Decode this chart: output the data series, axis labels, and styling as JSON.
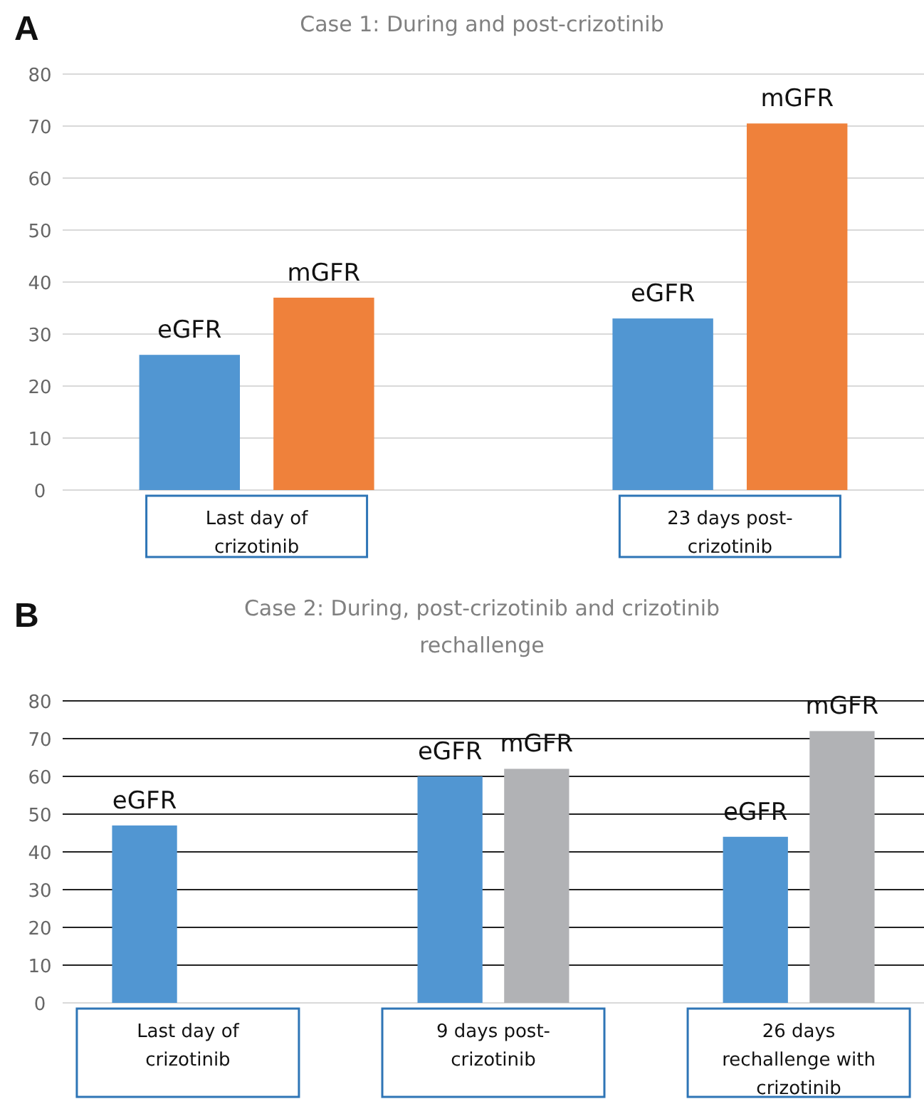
{
  "chart_data": [
    {
      "type": "bar",
      "title": "Case 1: During and post-crizotinib",
      "annotations": [
        "A"
      ],
      "categories": [
        "Last day of crizotinib",
        "23 days post-crizotinib"
      ],
      "series": [
        {
          "name": "eGFR",
          "color": "#5196d2",
          "values": [
            26,
            33
          ]
        },
        {
          "name": "mGFR",
          "color": "#ef813b",
          "values": [
            37,
            70.5
          ]
        }
      ],
      "ylim": [
        0,
        80
      ],
      "yticks": [
        0,
        10,
        20,
        30,
        40,
        50,
        60,
        70,
        80
      ],
      "grid": "y",
      "legend": false
    },
    {
      "type": "bar",
      "title": "Case 2: During, post-crizotinib and crizotinib rechallenge",
      "annotations": [
        "B"
      ],
      "categories": [
        "Last day of crizotinib",
        "9 days post-crizotinib",
        "26 days rechallenge with crizotinib"
      ],
      "series": [
        {
          "name": "eGFR",
          "color": "#5196d2",
          "values": [
            47,
            60,
            44
          ]
        },
        {
          "name": "mGFR",
          "color": "#b1b2b5",
          "values": [
            null,
            62,
            72
          ]
        }
      ],
      "ylim": [
        0,
        80
      ],
      "yticks": [
        0,
        10,
        20,
        30,
        40,
        50,
        60,
        70,
        80
      ],
      "grid": "y",
      "legend": false
    }
  ]
}
